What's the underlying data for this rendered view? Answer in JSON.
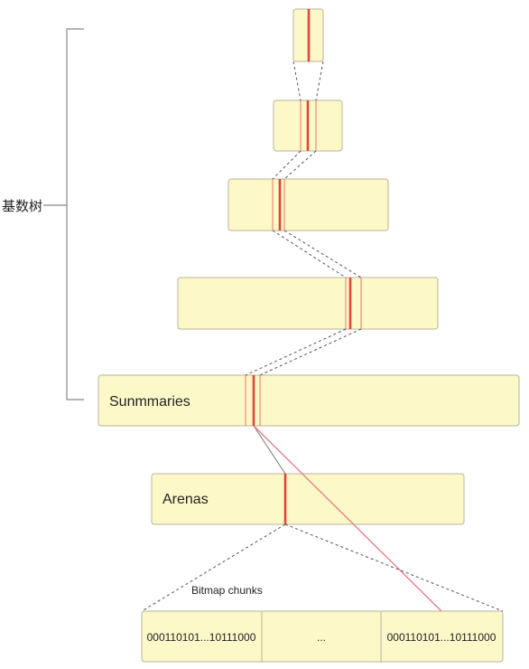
{
  "bracket_label": "基数树",
  "summaries_label": "Sunmmaries",
  "arenas_label": "Arenas",
  "bitmap_label": "Bitmap chunks",
  "chunks": [
    "000110101...10111000",
    "...",
    "000110101...10111000"
  ],
  "colors": {
    "box_fill": "#fdf8c8",
    "box_stroke": "#b9b59a",
    "highlight": "#e0463a",
    "thin_line": "#e8786a",
    "link": "#e87b80"
  }
}
